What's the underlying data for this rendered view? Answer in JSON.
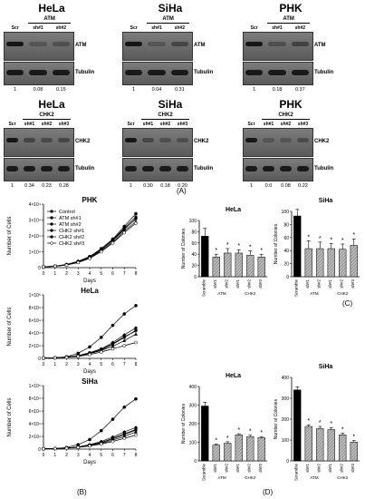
{
  "panel_labels": {
    "A": "(A)",
    "B": "(B)",
    "C": "(C)",
    "D": "(D)"
  },
  "blots_atm": [
    {
      "cell": "HeLa",
      "lanes": [
        "Scr",
        "sh#1",
        "sh#2"
      ],
      "group": "ATM",
      "top": "ATM",
      "bottom": "Tubulin",
      "quant": [
        "1",
        "0.08",
        "0.15"
      ]
    },
    {
      "cell": "SiHa",
      "lanes": [
        "Scr",
        "sh#1",
        "sh#2"
      ],
      "group": "ATM",
      "top": "ATM",
      "bottom": "Tubulin",
      "quant": [
        "1",
        "0.04",
        "0.31"
      ]
    },
    {
      "cell": "PHK",
      "lanes": [
        "Scr",
        "sh#1",
        "sh#2"
      ],
      "group": "ATM",
      "top": "ATM",
      "bottom": "Tubulin",
      "quant": [
        "1",
        "0.18",
        "0.37"
      ]
    }
  ],
  "blots_chk2": [
    {
      "cell": "HeLa",
      "lanes": [
        "Scr",
        "sh#1",
        "sh#2",
        "sh#3"
      ],
      "group": "CHK2",
      "top": "CHK2",
      "bottom": "Tubulin",
      "quant": [
        "1",
        "0.34",
        "0.23",
        "0.28"
      ]
    },
    {
      "cell": "SiHa",
      "lanes": [
        "Scr",
        "sh#1",
        "sh#2",
        "sh#3"
      ],
      "group": "CHK2",
      "top": "CHK2",
      "bottom": "Tubulin",
      "quant": [
        "1",
        "0.30",
        "0.18",
        "0.20"
      ]
    },
    {
      "cell": "PHK",
      "lanes": [
        "Scr",
        "sh#1",
        "sh#2",
        "sh#3"
      ],
      "group": "CHK2",
      "top": "CHK2",
      "bottom": "Tubulin",
      "quant": [
        "1",
        "0.0",
        "0.08",
        "0.22"
      ]
    }
  ],
  "chart_data": [
    {
      "type": "line",
      "title": "PHK",
      "xlabel": "Days",
      "ylabel": "Number of Cells",
      "x": [
        0,
        1,
        2,
        3,
        4,
        5,
        6,
        7,
        8
      ],
      "ylim": [
        0,
        40000
      ],
      "yticks": [
        "0",
        "1×10⁴",
        "2×10⁴",
        "3×10⁴",
        "4×10⁴"
      ],
      "legend": [
        "Control",
        "ATM sh#1",
        "ATM sh#2",
        "CHK2 sh#1",
        "CHK2 sh#2",
        "CHK2 sh#3"
      ],
      "series": [
        {
          "name": "Control",
          "values": [
            500,
            1000,
            2000,
            4000,
            7000,
            12000,
            18000,
            26000,
            34000
          ]
        },
        {
          "name": "ATM sh#1",
          "values": [
            500,
            900,
            1800,
            3500,
            6500,
            11000,
            17000,
            24000,
            31000
          ]
        },
        {
          "name": "ATM sh#2",
          "values": [
            500,
            900,
            1900,
            3800,
            6800,
            11500,
            17500,
            25000,
            32000
          ]
        },
        {
          "name": "CHK2 sh#1",
          "values": [
            500,
            850,
            1700,
            3300,
            6000,
            10500,
            16000,
            23000,
            29000
          ]
        },
        {
          "name": "CHK2 sh#2",
          "values": [
            500,
            900,
            1800,
            3600,
            6600,
            11200,
            17200,
            24500,
            30500
          ]
        },
        {
          "name": "CHK2 sh#3",
          "values": [
            500,
            850,
            1600,
            3200,
            5800,
            10000,
            15500,
            22000,
            28000
          ]
        }
      ]
    },
    {
      "type": "line",
      "title": "HeLa",
      "xlabel": "Days",
      "ylabel": "Number of Cells",
      "x": [
        0,
        1,
        2,
        3,
        4,
        5,
        6,
        7,
        8
      ],
      "ylim": [
        0,
        100000
      ],
      "yticks": [
        "0",
        "2×10⁴",
        "4×10⁴",
        "6×10⁴",
        "8×10⁴",
        "1×10⁵"
      ],
      "series": [
        {
          "name": "Control",
          "values": [
            500,
            1000,
            2500,
            8000,
            18000,
            33000,
            52000,
            70000,
            83000
          ]
        },
        {
          "name": "ATM sh#1",
          "values": [
            500,
            900,
            1800,
            4000,
            8000,
            13000,
            22000,
            33000,
            44000
          ]
        },
        {
          "name": "ATM sh#2",
          "values": [
            500,
            900,
            1900,
            4500,
            9000,
            15000,
            25000,
            37000,
            48000
          ]
        },
        {
          "name": "CHK2 sh#1",
          "values": [
            500,
            850,
            1700,
            3800,
            7500,
            12000,
            19000,
            28000,
            38000
          ]
        },
        {
          "name": "CHK2 sh#2",
          "values": [
            500,
            900,
            1800,
            4200,
            8500,
            14000,
            23000,
            34000,
            43000
          ]
        },
        {
          "name": "CHK2 sh#3",
          "values": [
            500,
            800,
            1500,
            3000,
            6000,
            10000,
            15000,
            20000,
            25000
          ]
        }
      ]
    },
    {
      "type": "line",
      "title": "SiHa",
      "xlabel": "Days",
      "ylabel": "Number of Cells",
      "x": [
        0,
        1,
        2,
        3,
        4,
        5,
        6,
        7,
        8
      ],
      "ylim": [
        0,
        100000
      ],
      "yticks": [
        "0",
        "2×10⁴",
        "4×10⁴",
        "6×10⁴",
        "8×10⁴",
        "1×10⁵"
      ],
      "series": [
        {
          "name": "Control",
          "values": [
            500,
            1000,
            2500,
            7000,
            15000,
            29000,
            47000,
            66000,
            79000
          ]
        },
        {
          "name": "ATM sh#1",
          "values": [
            500,
            800,
            1500,
            3000,
            6000,
            10000,
            16000,
            23000,
            30000
          ]
        },
        {
          "name": "ATM sh#2",
          "values": [
            500,
            850,
            1700,
            3500,
            7000,
            12000,
            19000,
            27000,
            34000
          ]
        },
        {
          "name": "CHK2 sh#1",
          "values": [
            500,
            800,
            1500,
            2800,
            5500,
            9000,
            14000,
            20000,
            27000
          ]
        },
        {
          "name": "CHK2 sh#2",
          "values": [
            500,
            800,
            1600,
            3200,
            6200,
            10500,
            17000,
            24000,
            31000
          ]
        },
        {
          "name": "CHK2 sh#3",
          "values": [
            500,
            750,
            1400,
            2600,
            5000,
            8000,
            12000,
            17000,
            22000
          ]
        }
      ]
    },
    {
      "type": "bar",
      "title": "HeLa",
      "ylabel": "Number of Colonies",
      "ylim": [
        0,
        100
      ],
      "yticks": [
        "0",
        "20",
        "40",
        "60",
        "80",
        "100"
      ],
      "categories": [
        "Scramble",
        "sh#1",
        "sh#2",
        "sh#1",
        "sh#2",
        "sh#3"
      ],
      "groups": [
        "ATM",
        "CHK2"
      ],
      "values": [
        72,
        35,
        42,
        42,
        38,
        35
      ],
      "errors": [
        14,
        5,
        8,
        6,
        8,
        5
      ],
      "significance": [
        "",
        "*",
        "*",
        "*",
        "*",
        "*"
      ]
    },
    {
      "type": "bar",
      "title": "SiHa",
      "ylabel": "Number of Colonies",
      "ylim": [
        0,
        100
      ],
      "yticks": [
        "0",
        "20",
        "40",
        "60",
        "80",
        "100"
      ],
      "categories": [
        "Scramble",
        "sh#1",
        "sh#2",
        "sh#1",
        "sh#2",
        "sh#3"
      ],
      "groups": [
        "ATM",
        "CHK2"
      ],
      "values": [
        93,
        43,
        43,
        43,
        42,
        48
      ],
      "errors": [
        10,
        12,
        10,
        8,
        8,
        10
      ],
      "significance": [
        "",
        "*",
        "*",
        "*",
        "*",
        "*"
      ]
    },
    {
      "type": "bar",
      "title": "HeLa",
      "ylabel": "Number of Colonies",
      "ylim": [
        0,
        400
      ],
      "yticks": [
        "0",
        "100",
        "200",
        "300",
        "400"
      ],
      "categories": [
        "Scramble",
        "sh#1",
        "sh#2",
        "sh#1",
        "sh#2",
        "sh#3"
      ],
      "groups": [
        "ATM",
        "CHK2"
      ],
      "values": [
        295,
        85,
        95,
        140,
        130,
        125
      ],
      "errors": [
        20,
        5,
        8,
        6,
        8,
        6
      ],
      "significance": [
        "",
        "*",
        "*",
        "*",
        "*",
        "*"
      ]
    },
    {
      "type": "bar",
      "title": "SiHa",
      "ylabel": "Number of Colonies",
      "ylim": [
        0,
        400
      ],
      "yticks": [
        "0",
        "100",
        "200",
        "300",
        "400"
      ],
      "categories": [
        "Scramble",
        "sh#1",
        "sh#2",
        "sh#1",
        "sh#2",
        "sh#3"
      ],
      "groups": [
        "ATM",
        "CHK2"
      ],
      "values": [
        340,
        165,
        155,
        150,
        125,
        90
      ],
      "errors": [
        15,
        8,
        10,
        10,
        8,
        8
      ],
      "significance": [
        "",
        "*",
        "*",
        "*",
        "*",
        "*"
      ]
    }
  ]
}
